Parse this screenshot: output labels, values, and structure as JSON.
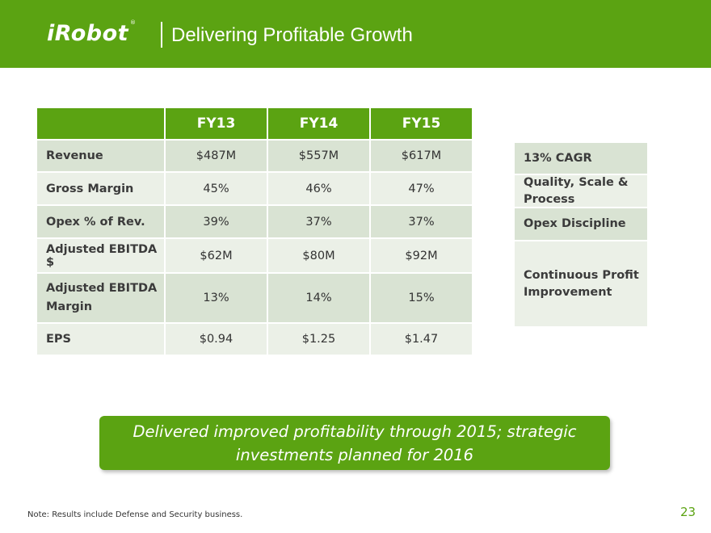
{
  "header": {
    "logo": "iRobot",
    "logo_mark": "®",
    "title": "Delivering Profitable Growth"
  },
  "table": {
    "columns": [
      "FY13",
      "FY14",
      "FY15"
    ],
    "rows": [
      {
        "label": "Revenue",
        "values": [
          "$487M",
          "$557M",
          "$617M"
        ]
      },
      {
        "label": "Gross Margin",
        "values": [
          "45%",
          "46%",
          "47%"
        ]
      },
      {
        "label": "Opex % of Rev.",
        "values": [
          "39%",
          "37%",
          "37%"
        ]
      },
      {
        "label": "Adjusted EBITDA $",
        "values": [
          "$62M",
          "$80M",
          "$92M"
        ]
      },
      {
        "label": "Adjusted EBITDA Margin",
        "values": [
          "13%",
          "14%",
          "15%"
        ]
      },
      {
        "label": "EPS",
        "values": [
          "$0.94",
          "$1.25",
          "$1.47"
        ]
      }
    ]
  },
  "notes": [
    "13% CAGR",
    "Quality, Scale & Process",
    "Opex Discipline",
    "Continuous Profit Improvement"
  ],
  "callout": {
    "line1": "Delivered improved profitability through 2015; strategic",
    "line2": "investments planned for 2016"
  },
  "footnote": "Note: Results include Defense and Security business.",
  "page_number": "23",
  "colors": {
    "brand_green": "#5ba312",
    "row_dark": "#d9e3d3",
    "row_light": "#ebf0e7"
  }
}
